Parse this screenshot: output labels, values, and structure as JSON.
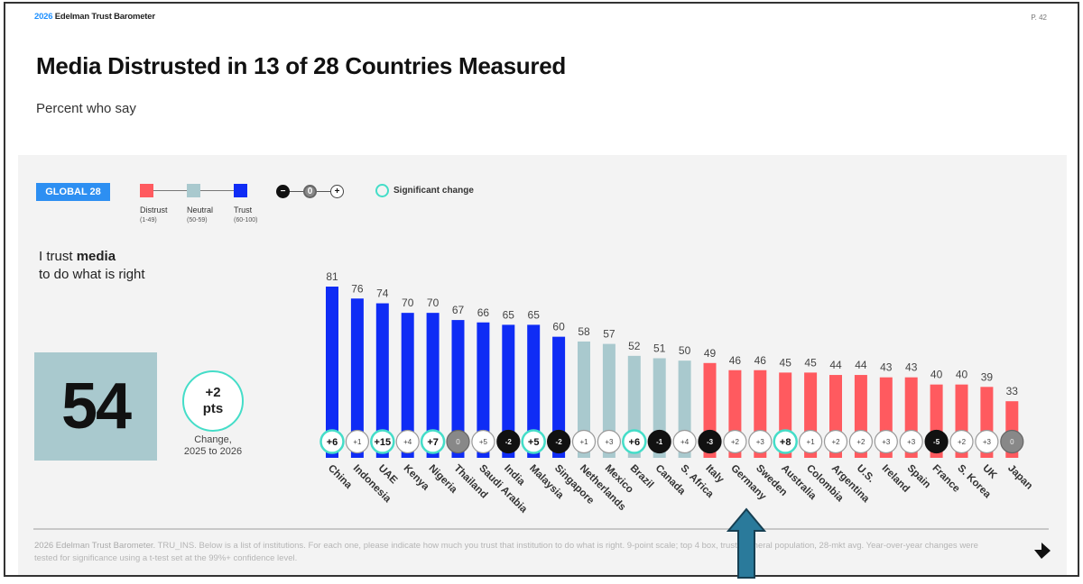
{
  "header": {
    "brand_year": "2026",
    "brand_name": "Edelman Trust Barometer",
    "page_number": "P. 42",
    "title": "Media Distrusted in 13 of 28 Countries Measured",
    "subtitle": "Percent who say"
  },
  "legend": {
    "global_badge": "GLOBAL 28",
    "scale": [
      {
        "label": "Distrust",
        "range": "(1-49)",
        "color": "#ff5a5f"
      },
      {
        "label": "Neutral",
        "range": "(50-59)",
        "color": "#a9c9ce"
      },
      {
        "label": "Trust",
        "range": "(60-100)",
        "color": "#0f2cf5"
      }
    ],
    "change_symbols": {
      "negative": "−",
      "zero": "0",
      "positive": "+"
    },
    "significant_change_label": "Significant change",
    "significant_color": "#44ddc8"
  },
  "statement": {
    "prefix": "I trust ",
    "emphasis": "media",
    "suffix": "to do what is right"
  },
  "global": {
    "value": "54",
    "change_value": "+2",
    "change_unit": "pts",
    "change_caption_line1": "Change,",
    "change_caption_line2": "2025 to 2026"
  },
  "chart_data": {
    "type": "bar",
    "title": "I trust media to do what is right",
    "xlabel": "",
    "ylabel": "Percent",
    "ylim": [
      0,
      100
    ],
    "grid": false,
    "categories": [
      "China",
      "Indonesia",
      "UAE",
      "Kenya",
      "Nigeria",
      "Thailand",
      "Saudi Arabia",
      "India",
      "Malaysia",
      "Singapore",
      "Netherlands",
      "Mexico",
      "Brazil",
      "Canada",
      "S. Africa",
      "Italy",
      "Germany",
      "Sweden",
      "Australia",
      "Colombia",
      "Argentina",
      "U.S.",
      "Ireland",
      "Spain",
      "France",
      "S. Korea",
      "UK",
      "Japan"
    ],
    "values": [
      81,
      76,
      74,
      70,
      70,
      67,
      66,
      65,
      65,
      60,
      58,
      57,
      52,
      51,
      50,
      49,
      46,
      46,
      45,
      45,
      44,
      44,
      43,
      43,
      40,
      40,
      39,
      33
    ],
    "changes": [
      "+6",
      "+1",
      "+15",
      "+4",
      "+7",
      "0",
      "+5",
      "-2",
      "+5",
      "-2",
      "+1",
      "+3",
      "+6",
      "-1",
      "+4",
      "-3",
      "+2",
      "+3",
      "+8",
      "+1",
      "+2",
      "+2",
      "+3",
      "+3",
      "-5",
      "+2",
      "+3",
      "0"
    ],
    "significant": [
      true,
      false,
      true,
      false,
      true,
      false,
      false,
      false,
      true,
      false,
      false,
      false,
      true,
      false,
      false,
      false,
      false,
      false,
      true,
      false,
      false,
      false,
      false,
      false,
      false,
      false,
      false,
      false
    ],
    "color_bands": {
      "distrust": [
        1,
        49
      ],
      "neutral": [
        50,
        59
      ],
      "trust": [
        60,
        100
      ]
    }
  },
  "footnote": {
    "bold": "2026 Edelman Trust Barometer.",
    "text": " TRU_INS. Below is a list of institutions. For each one, please indicate how much you trust that institution to do what is right. 9-point scale; top 4 box, trust. General population, 28-mkt avg. Year-over-year changes were tested for significance using a t-test set at the 99%+ confidence level."
  },
  "annotation": {
    "arrow_target": "Germany",
    "arrow_color": "#2a7a9b"
  }
}
